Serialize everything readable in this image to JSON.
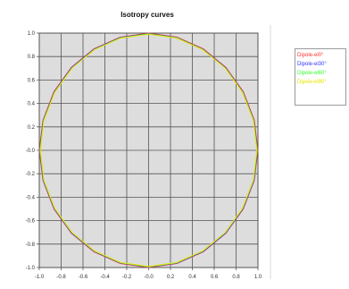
{
  "chart_data": {
    "type": "line",
    "title": "Isotropy curves",
    "xlabel": "",
    "ylabel": "",
    "xlim": [
      -1.0,
      1.0
    ],
    "ylim": [
      -1.0,
      1.0
    ],
    "grid": true,
    "legend_position": "right",
    "x_ticks": [
      "-1.0",
      "-0.8",
      "-0.6",
      "-0.4",
      "-0.2",
      "-0.0",
      "0.2",
      "0.4",
      "0.6",
      "0.8",
      "1.0"
    ],
    "y_ticks": [
      "1.0",
      "0.8",
      "0.6",
      "0.4",
      "0.2",
      "-0.0",
      "-0.2",
      "-0.4",
      "-0.6",
      "-0.8",
      "-1.0"
    ],
    "series": [
      {
        "name": "Dipole-el0°",
        "color": "#ff3333",
        "x": [
          0.0,
          0.258,
          0.5,
          0.707,
          0.866,
          0.966,
          1.0,
          0.966,
          0.866,
          0.707,
          0.5,
          0.258,
          0.0,
          -0.258,
          -0.5,
          -0.707,
          -0.866,
          -0.966,
          -1.0,
          -0.966,
          -0.866,
          -0.707,
          -0.5,
          -0.258,
          0.0
        ],
        "y": [
          1.0,
          0.966,
          0.866,
          0.707,
          0.5,
          0.258,
          0.0,
          -0.258,
          -0.5,
          -0.707,
          -0.866,
          -0.966,
          -1.0,
          -0.966,
          -0.866,
          -0.707,
          -0.5,
          -0.258,
          0.0,
          0.258,
          0.5,
          0.707,
          0.866,
          0.966,
          1.0
        ]
      },
      {
        "name": "Dipole-el30°",
        "color": "#3333ff",
        "x": [
          0.0,
          0.256,
          0.497,
          0.704,
          0.862,
          0.962,
          0.995,
          0.963,
          0.863,
          0.705,
          0.498,
          0.257,
          0.0,
          -0.257,
          -0.498,
          -0.705,
          -0.863,
          -0.963,
          -0.995,
          -0.962,
          -0.862,
          -0.704,
          -0.497,
          -0.256,
          0.0
        ],
        "y": [
          0.995,
          0.962,
          0.862,
          0.704,
          0.497,
          0.256,
          0.0,
          -0.257,
          -0.498,
          -0.705,
          -0.863,
          -0.963,
          -0.995,
          -0.962,
          -0.862,
          -0.704,
          -0.497,
          -0.256,
          0.0,
          0.257,
          0.498,
          0.705,
          0.863,
          0.963,
          0.995
        ]
      },
      {
        "name": "Dipole-el60°",
        "color": "#33ff33",
        "x": [
          0.0,
          0.255,
          0.495,
          0.702,
          0.86,
          0.96,
          0.993,
          0.96,
          0.86,
          0.702,
          0.495,
          0.255,
          0.0,
          -0.255,
          -0.495,
          -0.702,
          -0.86,
          -0.96,
          -0.993,
          -0.96,
          -0.86,
          -0.702,
          -0.495,
          -0.255,
          0.0
        ],
        "y": [
          0.993,
          0.96,
          0.86,
          0.702,
          0.495,
          0.255,
          0.0,
          -0.255,
          -0.495,
          -0.702,
          -0.86,
          -0.96,
          -0.993,
          -0.96,
          -0.86,
          -0.702,
          -0.495,
          -0.255,
          0.0,
          0.255,
          0.495,
          0.702,
          0.86,
          0.96,
          0.993
        ]
      },
      {
        "name": "Dipole-el90°",
        "color": "#e6e600",
        "x": [
          0.0,
          0.254,
          0.494,
          0.701,
          0.859,
          0.958,
          0.99,
          0.958,
          0.859,
          0.701,
          0.494,
          0.254,
          0.0,
          -0.254,
          -0.494,
          -0.701,
          -0.859,
          -0.958,
          -0.99,
          -0.958,
          -0.859,
          -0.701,
          -0.494,
          -0.254,
          0.0
        ],
        "y": [
          0.99,
          0.958,
          0.859,
          0.701,
          0.494,
          0.254,
          0.0,
          -0.254,
          -0.494,
          -0.701,
          -0.859,
          -0.958,
          -0.99,
          -0.958,
          -0.859,
          -0.701,
          -0.494,
          -0.254,
          0.0,
          0.254,
          0.494,
          0.701,
          0.859,
          0.958,
          0.99
        ]
      }
    ]
  },
  "colors": {
    "plot_background": "#dddddd",
    "grid": "#555555",
    "legend_border": "#9a9a9a"
  }
}
